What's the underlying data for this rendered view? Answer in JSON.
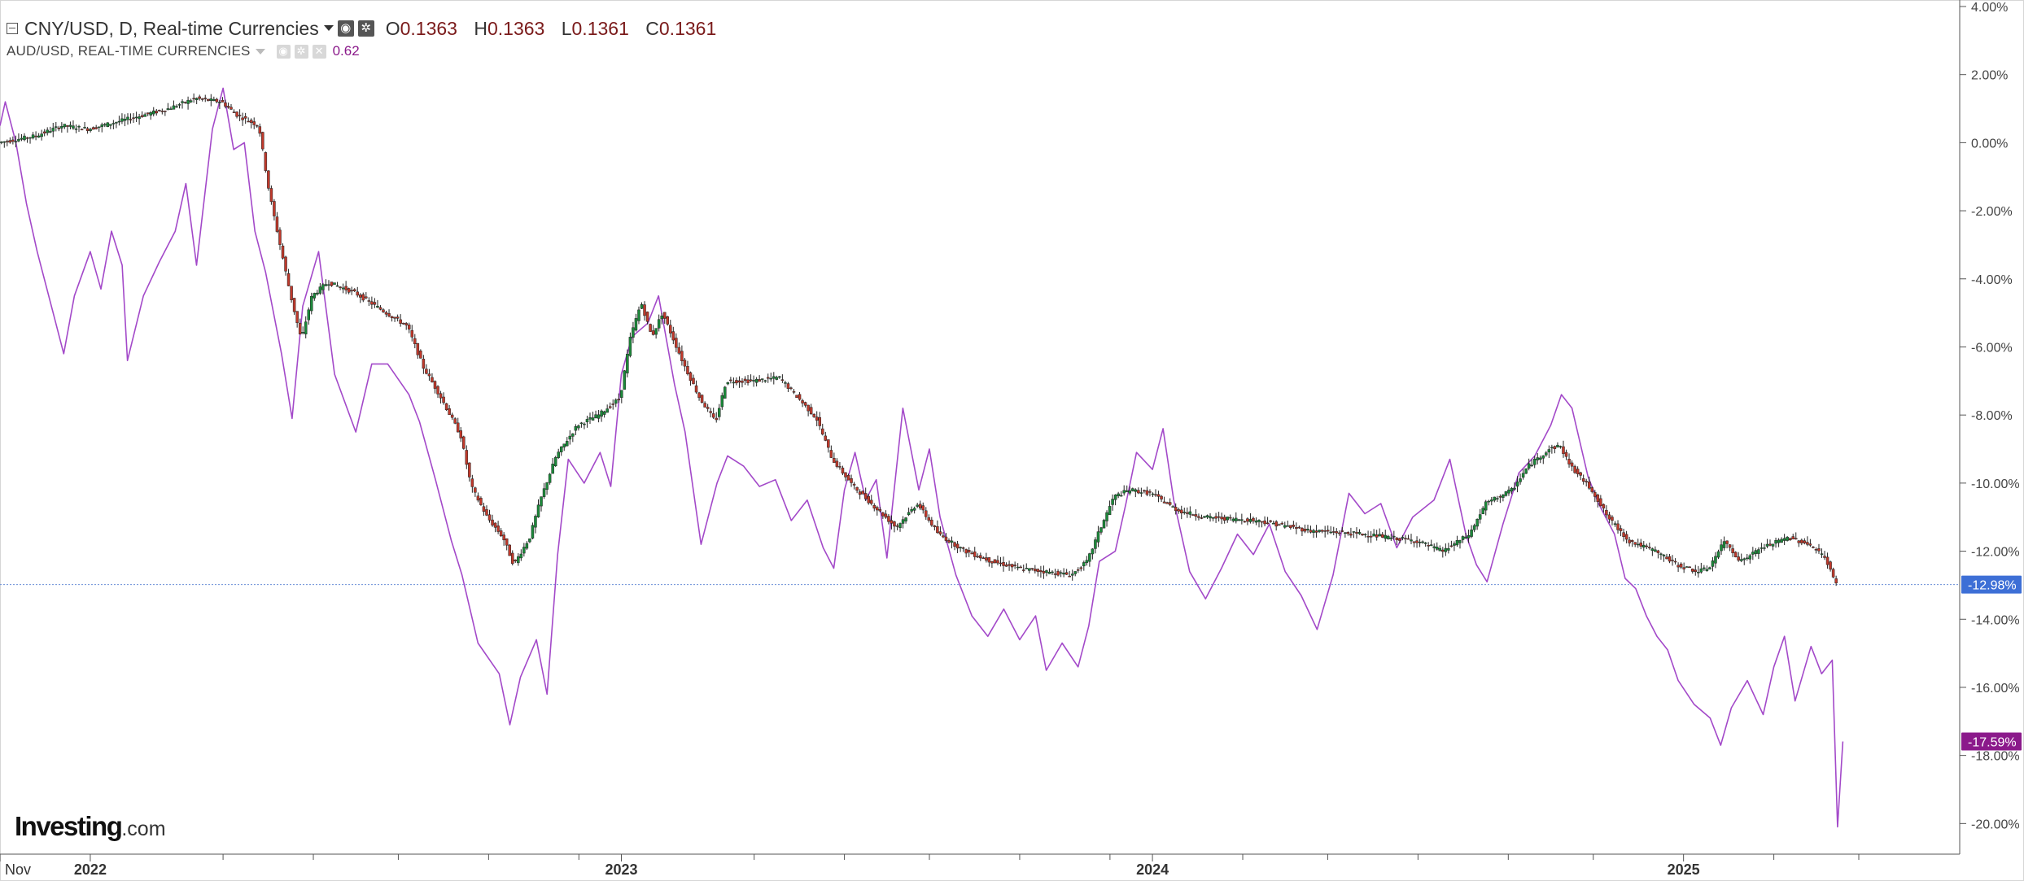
{
  "legend": {
    "symbol_title": "CNY/USD, D, Real-time Currencies",
    "ohlc": [
      {
        "key": "O",
        "value": "0.1363"
      },
      {
        "key": "H",
        "value": "0.1363"
      },
      {
        "key": "L",
        "value": "0.1361"
      },
      {
        "key": "C",
        "value": "0.1361"
      }
    ],
    "compare_title": "AUD/USD, REAL-TIME CURRENCIES",
    "compare_value": "0.62",
    "icons": [
      "collapse-icon",
      "visibility-icon",
      "settings-icon",
      "close-icon"
    ]
  },
  "branding": {
    "logo_main": "Investing",
    "logo_suffix": ".com"
  },
  "chart_data": {
    "type": "line",
    "y_unit": "%",
    "ylim": [
      -20.9,
      4.0
    ],
    "y_ticks": [
      4,
      2,
      0,
      -2,
      -4,
      -6,
      -8,
      -10,
      -12,
      -14,
      -16,
      -18,
      -20
    ],
    "y_tick_labels": [
      "4.00%",
      "2.00%",
      "0.00%",
      "-2.00%",
      "-4.00%",
      "-6.00%",
      "-8.00%",
      "-10.00%",
      "-12.00%",
      "-14.00%",
      "-16.00%",
      "-18.00%",
      "-20.00%"
    ],
    "xlim": [
      2021.83,
      2025.52
    ],
    "x_tick_labels": [
      {
        "x": 2021.83,
        "label": "Nov"
      },
      {
        "x": 2022.0,
        "label": "2022"
      },
      {
        "x": 2023.0,
        "label": "2023"
      },
      {
        "x": 2024.0,
        "label": "2024"
      },
      {
        "x": 2025.0,
        "label": "2025"
      }
    ],
    "x_minor_ticks": [
      2022.25,
      2022.42,
      2022.58,
      2022.75,
      2022.92,
      2023.25,
      2023.42,
      2023.58,
      2023.75,
      2023.92,
      2024.17,
      2024.33,
      2024.5,
      2024.67,
      2024.83,
      2025.17,
      2025.33
    ],
    "grid": false,
    "series": [
      {
        "name": "CNY/USD",
        "style": "candlestick",
        "color_up": "#1b8a3a",
        "color_down": "#c0392b",
        "points": [
          [
            2021.83,
            0.0
          ],
          [
            2021.9,
            0.2
          ],
          [
            2021.95,
            0.5
          ],
          [
            2022.0,
            0.4
          ],
          [
            2022.05,
            0.6
          ],
          [
            2022.1,
            0.8
          ],
          [
            2022.15,
            1.0
          ],
          [
            2022.2,
            1.3
          ],
          [
            2022.25,
            1.2
          ],
          [
            2022.28,
            0.8
          ],
          [
            2022.32,
            0.5
          ],
          [
            2022.34,
            -1.5
          ],
          [
            2022.36,
            -3.0
          ],
          [
            2022.38,
            -4.5
          ],
          [
            2022.4,
            -5.8
          ],
          [
            2022.42,
            -4.5
          ],
          [
            2022.45,
            -4.1
          ],
          [
            2022.5,
            -4.4
          ],
          [
            2022.55,
            -4.9
          ],
          [
            2022.6,
            -5.4
          ],
          [
            2022.63,
            -6.6
          ],
          [
            2022.66,
            -7.4
          ],
          [
            2022.7,
            -8.6
          ],
          [
            2022.72,
            -10.1
          ],
          [
            2022.75,
            -11.0
          ],
          [
            2022.78,
            -11.6
          ],
          [
            2022.8,
            -12.4
          ],
          [
            2022.83,
            -11.6
          ],
          [
            2022.85,
            -10.5
          ],
          [
            2022.88,
            -9.2
          ],
          [
            2022.92,
            -8.3
          ],
          [
            2022.96,
            -8.0
          ],
          [
            2023.0,
            -7.5
          ],
          [
            2023.02,
            -5.7
          ],
          [
            2023.04,
            -4.7
          ],
          [
            2023.06,
            -5.7
          ],
          [
            2023.08,
            -5.0
          ],
          [
            2023.12,
            -6.5
          ],
          [
            2023.15,
            -7.5
          ],
          [
            2023.18,
            -8.2
          ],
          [
            2023.2,
            -7.0
          ],
          [
            2023.25,
            -7.0
          ],
          [
            2023.3,
            -6.9
          ],
          [
            2023.33,
            -7.4
          ],
          [
            2023.37,
            -8.1
          ],
          [
            2023.4,
            -9.3
          ],
          [
            2023.44,
            -10.1
          ],
          [
            2023.48,
            -10.7
          ],
          [
            2023.52,
            -11.3
          ],
          [
            2023.56,
            -10.6
          ],
          [
            2023.6,
            -11.5
          ],
          [
            2023.65,
            -12.0
          ],
          [
            2023.7,
            -12.3
          ],
          [
            2023.75,
            -12.5
          ],
          [
            2023.8,
            -12.6
          ],
          [
            2023.85,
            -12.7
          ],
          [
            2023.88,
            -12.3
          ],
          [
            2023.9,
            -11.5
          ],
          [
            2023.93,
            -10.4
          ],
          [
            2023.96,
            -10.2
          ],
          [
            2024.0,
            -10.3
          ],
          [
            2024.05,
            -10.8
          ],
          [
            2024.1,
            -11.0
          ],
          [
            2024.2,
            -11.1
          ],
          [
            2024.3,
            -11.4
          ],
          [
            2024.4,
            -11.5
          ],
          [
            2024.5,
            -11.7
          ],
          [
            2024.55,
            -12.0
          ],
          [
            2024.6,
            -11.5
          ],
          [
            2024.63,
            -10.6
          ],
          [
            2024.68,
            -10.2
          ],
          [
            2024.71,
            -9.5
          ],
          [
            2024.75,
            -9.0
          ],
          [
            2024.77,
            -8.9
          ],
          [
            2024.79,
            -9.5
          ],
          [
            2024.83,
            -10.2
          ],
          [
            2024.86,
            -11.0
          ],
          [
            2024.9,
            -11.7
          ],
          [
            2024.95,
            -12.0
          ],
          [
            2024.99,
            -12.4
          ],
          [
            2025.03,
            -12.6
          ],
          [
            2025.05,
            -12.5
          ],
          [
            2025.08,
            -11.7
          ],
          [
            2025.11,
            -12.3
          ],
          [
            2025.15,
            -11.9
          ],
          [
            2025.2,
            -11.6
          ],
          [
            2025.24,
            -11.8
          ],
          [
            2025.27,
            -12.2
          ],
          [
            2025.29,
            -12.98
          ]
        ]
      },
      {
        "name": "AUD/USD",
        "style": "line",
        "color": "#a349c9",
        "points": [
          [
            2021.83,
            0.5
          ],
          [
            2021.84,
            1.2
          ],
          [
            2021.86,
            0.0
          ],
          [
            2021.88,
            -1.8
          ],
          [
            2021.9,
            -3.2
          ],
          [
            2021.93,
            -5.0
          ],
          [
            2021.95,
            -6.2
          ],
          [
            2021.97,
            -4.5
          ],
          [
            2022.0,
            -3.2
          ],
          [
            2022.02,
            -4.3
          ],
          [
            2022.04,
            -2.6
          ],
          [
            2022.06,
            -3.6
          ],
          [
            2022.07,
            -6.4
          ],
          [
            2022.1,
            -4.5
          ],
          [
            2022.13,
            -3.5
          ],
          [
            2022.16,
            -2.6
          ],
          [
            2022.18,
            -1.2
          ],
          [
            2022.2,
            -3.6
          ],
          [
            2022.23,
            0.4
          ],
          [
            2022.25,
            1.6
          ],
          [
            2022.27,
            -0.2
          ],
          [
            2022.29,
            0.0
          ],
          [
            2022.31,
            -2.6
          ],
          [
            2022.33,
            -3.8
          ],
          [
            2022.36,
            -6.2
          ],
          [
            2022.38,
            -8.1
          ],
          [
            2022.4,
            -4.8
          ],
          [
            2022.43,
            -3.2
          ],
          [
            2022.46,
            -6.8
          ],
          [
            2022.5,
            -8.5
          ],
          [
            2022.53,
            -6.5
          ],
          [
            2022.56,
            -6.5
          ],
          [
            2022.6,
            -7.4
          ],
          [
            2022.62,
            -8.2
          ],
          [
            2022.65,
            -9.9
          ],
          [
            2022.68,
            -11.7
          ],
          [
            2022.7,
            -12.7
          ],
          [
            2022.73,
            -14.7
          ],
          [
            2022.77,
            -15.6
          ],
          [
            2022.79,
            -17.1
          ],
          [
            2022.81,
            -15.7
          ],
          [
            2022.84,
            -14.6
          ],
          [
            2022.86,
            -16.2
          ],
          [
            2022.88,
            -12.1
          ],
          [
            2022.9,
            -9.3
          ],
          [
            2022.93,
            -10.0
          ],
          [
            2022.96,
            -9.1
          ],
          [
            2022.98,
            -10.1
          ],
          [
            2023.0,
            -6.8
          ],
          [
            2023.02,
            -5.7
          ],
          [
            2023.05,
            -5.3
          ],
          [
            2023.07,
            -4.5
          ],
          [
            2023.1,
            -7.1
          ],
          [
            2023.12,
            -8.5
          ],
          [
            2023.15,
            -11.8
          ],
          [
            2023.18,
            -10.0
          ],
          [
            2023.2,
            -9.2
          ],
          [
            2023.23,
            -9.5
          ],
          [
            2023.26,
            -10.1
          ],
          [
            2023.29,
            -9.9
          ],
          [
            2023.32,
            -11.1
          ],
          [
            2023.35,
            -10.5
          ],
          [
            2023.38,
            -11.9
          ],
          [
            2023.4,
            -12.5
          ],
          [
            2023.42,
            -10.2
          ],
          [
            2023.44,
            -9.1
          ],
          [
            2023.46,
            -10.5
          ],
          [
            2023.48,
            -9.9
          ],
          [
            2023.5,
            -12.2
          ],
          [
            2023.53,
            -7.8
          ],
          [
            2023.56,
            -10.2
          ],
          [
            2023.58,
            -9.0
          ],
          [
            2023.6,
            -11.0
          ],
          [
            2023.63,
            -12.7
          ],
          [
            2023.66,
            -13.9
          ],
          [
            2023.69,
            -14.5
          ],
          [
            2023.72,
            -13.7
          ],
          [
            2023.75,
            -14.6
          ],
          [
            2023.78,
            -13.9
          ],
          [
            2023.8,
            -15.5
          ],
          [
            2023.83,
            -14.7
          ],
          [
            2023.86,
            -15.4
          ],
          [
            2023.88,
            -14.2
          ],
          [
            2023.9,
            -12.3
          ],
          [
            2023.93,
            -12.0
          ],
          [
            2023.95,
            -10.6
          ],
          [
            2023.97,
            -9.1
          ],
          [
            2024.0,
            -9.6
          ],
          [
            2024.02,
            -8.4
          ],
          [
            2024.04,
            -10.5
          ],
          [
            2024.07,
            -12.6
          ],
          [
            2024.1,
            -13.4
          ],
          [
            2024.13,
            -12.5
          ],
          [
            2024.16,
            -11.5
          ],
          [
            2024.19,
            -12.1
          ],
          [
            2024.22,
            -11.2
          ],
          [
            2024.25,
            -12.6
          ],
          [
            2024.28,
            -13.3
          ],
          [
            2024.31,
            -14.3
          ],
          [
            2024.34,
            -12.7
          ],
          [
            2024.37,
            -10.3
          ],
          [
            2024.4,
            -10.9
          ],
          [
            2024.43,
            -10.6
          ],
          [
            2024.46,
            -11.9
          ],
          [
            2024.49,
            -11.0
          ],
          [
            2024.53,
            -10.5
          ],
          [
            2024.56,
            -9.3
          ],
          [
            2024.59,
            -11.5
          ],
          [
            2024.61,
            -12.4
          ],
          [
            2024.63,
            -12.9
          ],
          [
            2024.66,
            -11.2
          ],
          [
            2024.69,
            -9.7
          ],
          [
            2024.72,
            -9.2
          ],
          [
            2024.75,
            -8.3
          ],
          [
            2024.77,
            -7.4
          ],
          [
            2024.79,
            -7.8
          ],
          [
            2024.82,
            -9.8
          ],
          [
            2024.84,
            -10.6
          ],
          [
            2024.87,
            -11.5
          ],
          [
            2024.89,
            -12.8
          ],
          [
            2024.91,
            -13.1
          ],
          [
            2024.93,
            -13.9
          ],
          [
            2024.95,
            -14.5
          ],
          [
            2024.97,
            -14.9
          ],
          [
            2024.99,
            -15.8
          ],
          [
            2025.02,
            -16.5
          ],
          [
            2025.05,
            -16.9
          ],
          [
            2025.07,
            -17.7
          ],
          [
            2025.09,
            -16.6
          ],
          [
            2025.12,
            -15.8
          ],
          [
            2025.15,
            -16.8
          ],
          [
            2025.17,
            -15.4
          ],
          [
            2025.19,
            -14.5
          ],
          [
            2025.21,
            -16.4
          ],
          [
            2025.24,
            -14.8
          ],
          [
            2025.26,
            -15.6
          ],
          [
            2025.28,
            -15.2
          ],
          [
            2025.29,
            -20.1
          ],
          [
            2025.3,
            -17.59
          ]
        ]
      }
    ],
    "current_value_badges": [
      {
        "series": "CNY/USD",
        "value": -12.98,
        "label": "-12.98%",
        "color": "#3d6fd6"
      },
      {
        "series": "AUD/USD",
        "value": -17.59,
        "label": "-17.59%",
        "color": "#8b1a8b"
      }
    ],
    "reference_line": {
      "value": -12.98,
      "color": "#6a8ed8"
    }
  }
}
